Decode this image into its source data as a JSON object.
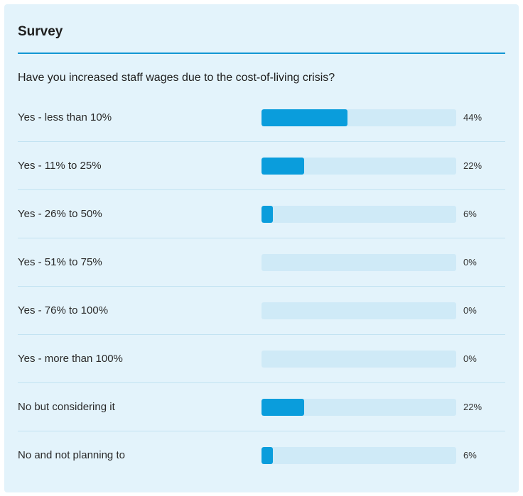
{
  "survey": {
    "title": "Survey",
    "question": "Have you increased staff wages due to the cost-of-living crisis?",
    "accent_color": "#1296d3",
    "bar_color": "#0a9ddc",
    "track_color": "#cfeaf7",
    "options": [
      {
        "label": "Yes - less than 10%",
        "percent": 44,
        "percent_label": "44%"
      },
      {
        "label": "Yes - 11% to 25%",
        "percent": 22,
        "percent_label": "22%"
      },
      {
        "label": "Yes - 26% to 50%",
        "percent": 6,
        "percent_label": "6%"
      },
      {
        "label": "Yes - 51% to 75%",
        "percent": 0,
        "percent_label": "0%"
      },
      {
        "label": "Yes - 76% to 100%",
        "percent": 0,
        "percent_label": "0%"
      },
      {
        "label": "Yes - more than 100%",
        "percent": 0,
        "percent_label": "0%"
      },
      {
        "label": "No but considering it",
        "percent": 22,
        "percent_label": "22%"
      },
      {
        "label": "No and not planning to",
        "percent": 6,
        "percent_label": "6%"
      }
    ]
  }
}
